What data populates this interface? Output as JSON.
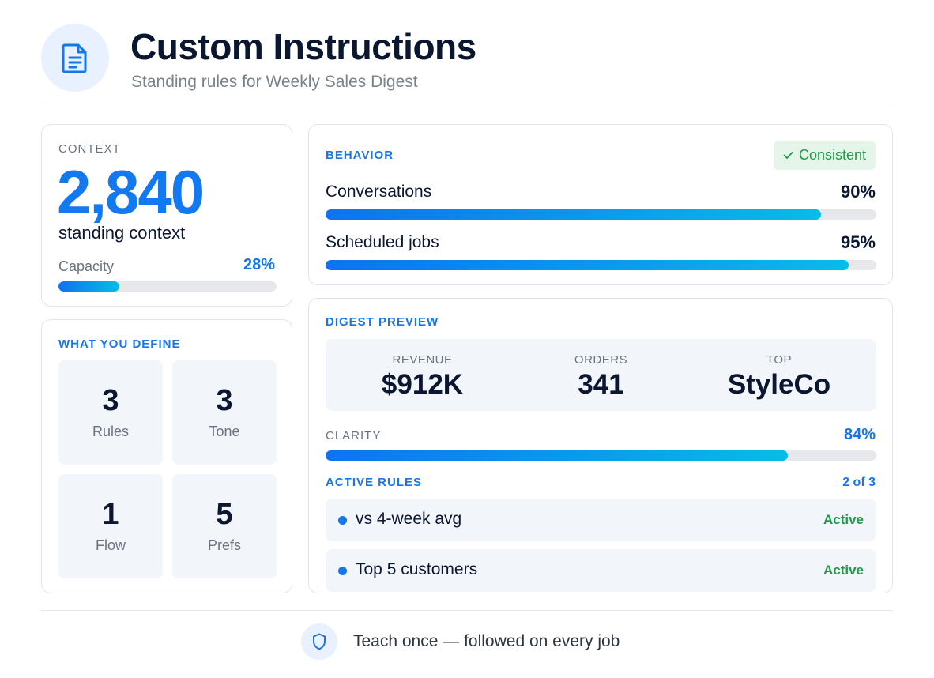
{
  "header": {
    "icon": "document-icon",
    "title": "Custom Instructions",
    "subtitle": "Standing rules for Weekly Sales Digest"
  },
  "context": {
    "label": "CONTEXT",
    "value": "2,840",
    "caption": "standing context",
    "capacity_label": "Capacity",
    "capacity_value": "28%",
    "capacity_fraction": 0.28
  },
  "define": {
    "label": "WHAT YOU DEFINE",
    "tiles": [
      {
        "count": "3",
        "label": "Rules"
      },
      {
        "count": "3",
        "label": "Tone"
      },
      {
        "count": "1",
        "label": "Flow"
      },
      {
        "count": "5",
        "label": "Prefs"
      }
    ]
  },
  "behavior": {
    "label": "BEHAVIOR",
    "badge": "Consistent",
    "badge_icon": "check-icon",
    "rows": [
      {
        "name": "Conversations",
        "value": "90%",
        "fraction": 0.9
      },
      {
        "name": "Scheduled jobs",
        "value": "95%",
        "fraction": 0.95
      }
    ]
  },
  "digest": {
    "label": "DIGEST PREVIEW",
    "stats": [
      {
        "key": "REVENUE",
        "value": "$912K"
      },
      {
        "key": "ORDERS",
        "value": "341"
      },
      {
        "key": "TOP",
        "value": "StyleCo"
      }
    ],
    "clarity_label": "CLARITY",
    "clarity_value": "84%",
    "clarity_fraction": 0.84,
    "active_label": "ACTIVE RULES",
    "active_count": "2 of 3",
    "rules": [
      {
        "text": "vs 4-week avg",
        "status": "Active"
      },
      {
        "text": "Top 5 customers",
        "status": "Active"
      }
    ]
  },
  "footer": {
    "icon": "shield-icon",
    "text": "Teach once — followed on every job"
  },
  "colors": {
    "accent": "#1677e8",
    "success": "#1f9a48",
    "bar_start": "#0f72f0",
    "bar_end": "#06bde5"
  }
}
